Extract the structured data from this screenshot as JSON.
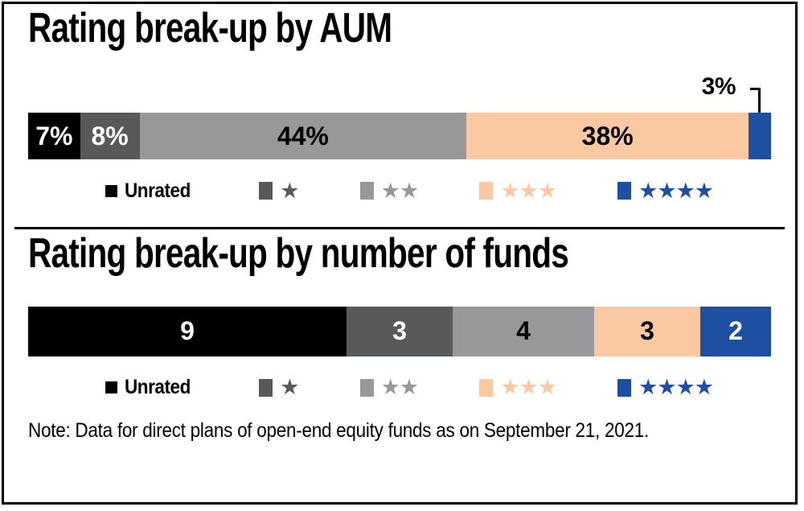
{
  "charts": [
    {
      "title": "Rating break-up by AUM",
      "callout_label": "3%",
      "segments": [
        {
          "label": "7%",
          "value": 7,
          "color": "#000000",
          "text_color": "#ffffff"
        },
        {
          "label": "8%",
          "value": 8,
          "color": "#58595b",
          "text_color": "#ffffff"
        },
        {
          "label": "44%",
          "value": 44,
          "color": "#98989b",
          "text_color": "#000000"
        },
        {
          "label": "38%",
          "value": 38,
          "color": "#fbc8a4",
          "text_color": "#000000"
        },
        {
          "label": "",
          "value": 3,
          "color": "#1e4fa1",
          "text_color": "#ffffff"
        }
      ]
    },
    {
      "title": "Rating break-up by number of funds",
      "callout_label": "",
      "segments": [
        {
          "label": "9",
          "value": 9,
          "color": "#000000",
          "text_color": "#ffffff"
        },
        {
          "label": "3",
          "value": 3,
          "color": "#58595b",
          "text_color": "#ffffff"
        },
        {
          "label": "4",
          "value": 4,
          "color": "#98989b",
          "text_color": "#000000"
        },
        {
          "label": "3",
          "value": 3,
          "color": "#fbc8a4",
          "text_color": "#000000"
        },
        {
          "label": "2",
          "value": 2,
          "color": "#1e4fa1",
          "text_color": "#ffffff"
        }
      ]
    }
  ],
  "legend": {
    "items": [
      {
        "label": "Unrated",
        "stars": 0,
        "swatch_color": "#000000",
        "star_color": ""
      },
      {
        "label": "",
        "stars": 1,
        "swatch_color": "#58595b",
        "star_color": "#58595b"
      },
      {
        "label": "",
        "stars": 2,
        "swatch_color": "#98989b",
        "star_color": "#98989b"
      },
      {
        "label": "",
        "stars": 3,
        "swatch_color": "#fbc8a4",
        "star_color": "#fbc8a4"
      },
      {
        "label": "",
        "stars": 4,
        "swatch_color": "#1e4fa1",
        "star_color": "#1e4fa1"
      }
    ]
  },
  "icons": {
    "star_glyph": "★"
  },
  "note": "Note: Data for direct plans of open-end equity funds as on September 21, 2021.",
  "colors": {
    "unrated": "#000000",
    "one_star": "#58595b",
    "two_star": "#98989b",
    "three_star": "#fbc8a4",
    "four_star": "#1e4fa1",
    "border": "#000000",
    "background": "#ffffff"
  },
  "chart_data": [
    {
      "type": "bar",
      "orientation": "horizontal-stacked",
      "title": "Rating break-up by AUM",
      "unit": "percent",
      "categories": [
        "Unrated",
        "1-star",
        "2-star",
        "3-star",
        "4-star"
      ],
      "values": [
        7,
        8,
        44,
        38,
        3
      ],
      "labels": [
        "7%",
        "8%",
        "44%",
        "38%",
        "3%"
      ],
      "colors": [
        "#000000",
        "#58595b",
        "#98989b",
        "#fbc8a4",
        "#1e4fa1"
      ],
      "legend_position": "below",
      "grid": false,
      "axes": false
    },
    {
      "type": "bar",
      "orientation": "horizontal-stacked",
      "title": "Rating break-up by number of funds",
      "unit": "count",
      "categories": [
        "Unrated",
        "1-star",
        "2-star",
        "3-star",
        "4-star"
      ],
      "values": [
        9,
        3,
        4,
        3,
        2
      ],
      "labels": [
        "9",
        "3",
        "4",
        "3",
        "2"
      ],
      "colors": [
        "#000000",
        "#58595b",
        "#98989b",
        "#fbc8a4",
        "#1e4fa1"
      ],
      "legend_position": "below",
      "grid": false,
      "axes": false
    }
  ]
}
